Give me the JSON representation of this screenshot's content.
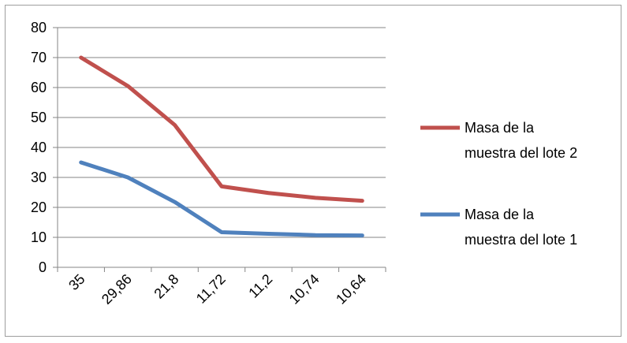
{
  "chart_data": {
    "type": "line",
    "categories": [
      "35",
      "29,86",
      "21,8",
      "11,72",
      "11,2",
      "10,74",
      "10,64"
    ],
    "series": [
      {
        "name": "Masa de la muestra del lote 2",
        "legend_lines": [
          "Masa de la",
          "muestra del lote 2"
        ],
        "color": "#c0504d",
        "values": [
          70,
          60.5,
          47.5,
          27,
          24.8,
          23.2,
          22.2
        ]
      },
      {
        "name": "Masa de la muestra del lote 1",
        "legend_lines": [
          "Masa de la",
          "muestra del lote 1"
        ],
        "color": "#4f81bd",
        "values": [
          35,
          30,
          21.8,
          11.72,
          11.2,
          10.74,
          10.64
        ]
      }
    ],
    "y_ticks": [
      "0",
      "10",
      "20",
      "30",
      "40",
      "50",
      "60",
      "70",
      "80"
    ],
    "ylim": [
      0,
      80
    ],
    "grid": true,
    "legend_position": "right"
  }
}
